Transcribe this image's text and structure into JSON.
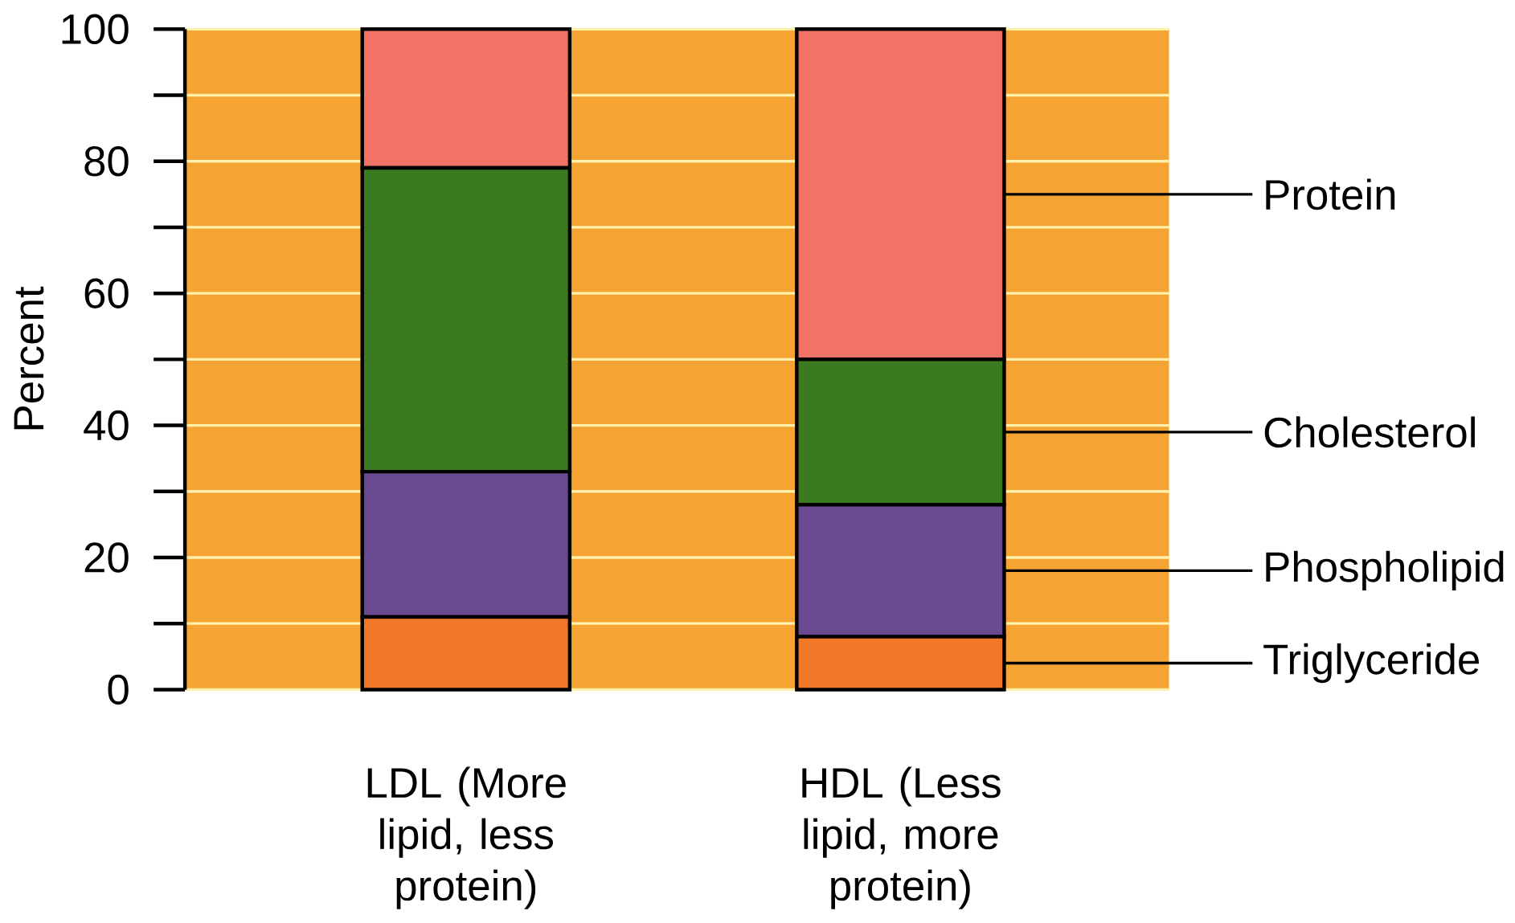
{
  "chart_data": {
    "type": "bar",
    "stacked": true,
    "ylabel": "Percent",
    "categories": [
      "LDL (More lipid, less protein)",
      "HDL (Less lipid, more protein)"
    ],
    "series": [
      {
        "name": "Triglyceride",
        "color": "#f07828",
        "values": [
          11,
          8
        ]
      },
      {
        "name": "Phospholipid",
        "color": "#6a4a90",
        "values": [
          22,
          20
        ]
      },
      {
        "name": "Cholesterol",
        "color": "#3c7a22",
        "values": [
          46,
          22
        ]
      },
      {
        "name": "Protein",
        "color": "#f27265",
        "values": [
          21,
          50
        ]
      }
    ],
    "ylim": [
      0,
      100
    ],
    "yticks": [
      0,
      {
        "value": 10,
        "label": null
      },
      20,
      {
        "value": 30,
        "label": null
      },
      40,
      {
        "value": 50,
        "label": null
      },
      60,
      {
        "value": 70,
        "label": null
      },
      80,
      {
        "value": 90,
        "label": null
      },
      100
    ],
    "grid": true,
    "legend": "right"
  }
}
